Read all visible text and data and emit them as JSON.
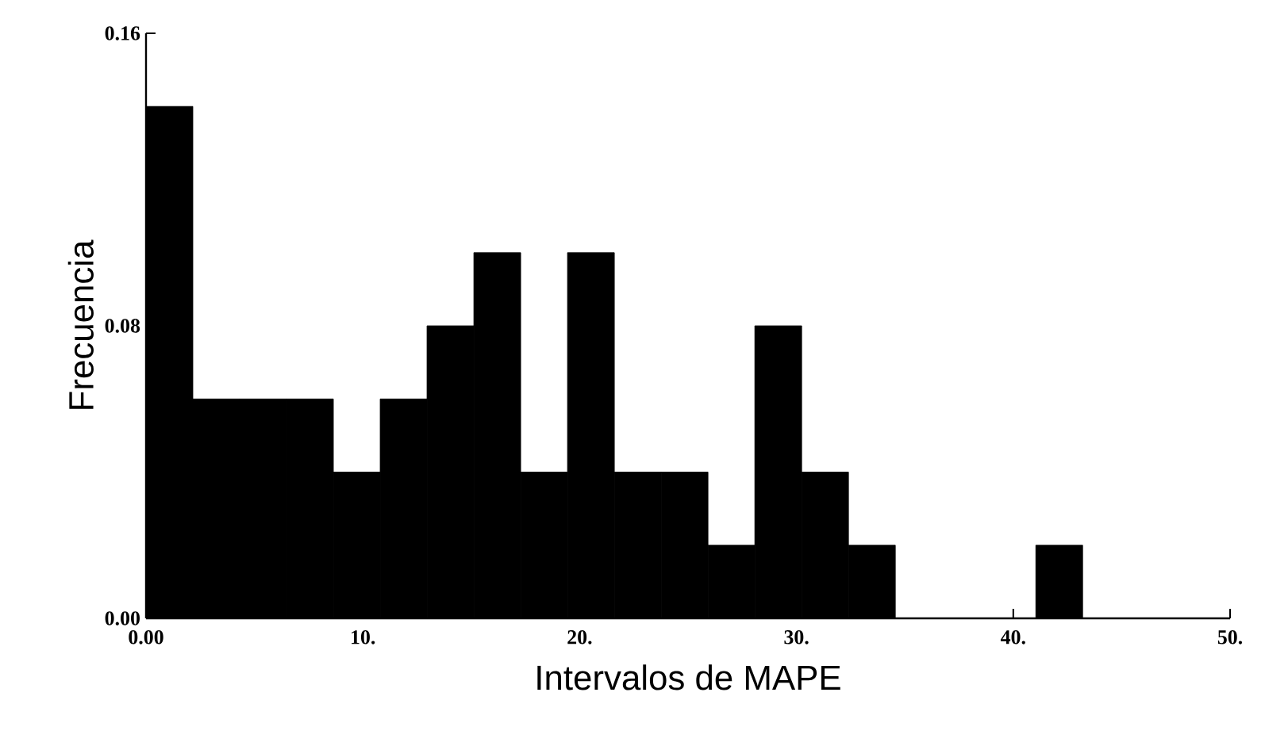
{
  "chart_data": {
    "type": "histogram",
    "xlabel": "Intervalos de MAPE",
    "ylabel": "Frecuencia",
    "bins": [
      0,
      2.16,
      4.32,
      6.48,
      8.64,
      10.8,
      12.96,
      15.12,
      17.28,
      19.44,
      21.6,
      23.76,
      25.92,
      28.08,
      30.24,
      32.4,
      34.56,
      36.72,
      38.88,
      41.04,
      43.2
    ],
    "values": [
      0.14,
      0.06,
      0.06,
      0.06,
      0.04,
      0.06,
      0.08,
      0.1,
      0.04,
      0.1,
      0.04,
      0.04,
      0.02,
      0.08,
      0.04,
      0.02,
      0,
      0,
      0,
      0.02
    ],
    "color": "#000000",
    "xlim": [
      0,
      50
    ],
    "ylim": [
      0,
      0.16
    ],
    "xticks": [
      {
        "value": 0,
        "label": "0.00"
      },
      {
        "value": 10,
        "label": "10."
      },
      {
        "value": 20,
        "label": "20."
      },
      {
        "value": 30,
        "label": "30."
      },
      {
        "value": 40,
        "label": "40."
      },
      {
        "value": 50,
        "label": "50."
      }
    ],
    "yticks": [
      {
        "value": 0,
        "label": "0.00"
      },
      {
        "value": 0.04,
        "label": null
      },
      {
        "value": 0.08,
        "label": "0.08"
      },
      {
        "value": 0.12,
        "label": null
      },
      {
        "value": 0.16,
        "label": "0.16"
      }
    ],
    "grid": false
  }
}
